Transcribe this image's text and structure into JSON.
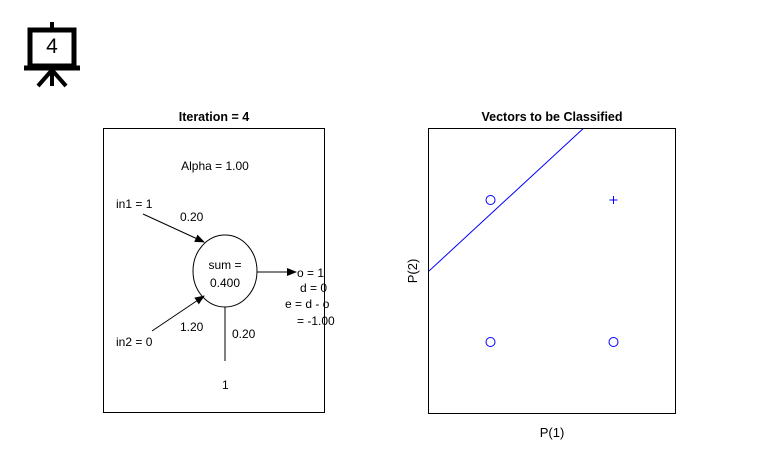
{
  "badge": {
    "number": "4",
    "icon": "presentation-board-icon"
  },
  "left_panel": {
    "title": "Iteration = 4",
    "alpha_label": "Alpha = 1.00",
    "in1_label": "in1 = 1",
    "in1_weight": "0.20",
    "in2_label": "in2 = 0",
    "in2_weight": "1.20",
    "sum_label": "sum =",
    "sum_value": "0.400",
    "bias_weight": "0.20",
    "bias_input": "1",
    "output_o": "o = 1",
    "output_d": "d = 0",
    "output_e": "e = d - o",
    "output_err": "= -1.00"
  },
  "right_panel": {
    "title": "Vectors to be Classified",
    "xlabel": "P(1)",
    "ylabel": "P(2)"
  },
  "chart_data": {
    "type": "scatter",
    "title": "Vectors to be Classified",
    "xlabel": "P(1)",
    "ylabel": "P(2)",
    "xlim": [
      -0.5,
      1.5
    ],
    "ylim": [
      -0.5,
      1.5
    ],
    "series": [
      {
        "marker": "o",
        "color": "#0000ff",
        "points": [
          [
            0,
            0
          ],
          [
            0,
            1
          ],
          [
            1,
            0
          ]
        ]
      },
      {
        "marker": "+",
        "color": "#0000ff",
        "points": [
          [
            1,
            1
          ]
        ]
      }
    ],
    "decision_line": {
      "color": "#0000ff",
      "points": [
        [
          -0.5,
          0.5
        ],
        [
          1.5,
          2.1
        ]
      ]
    },
    "grid": false
  }
}
